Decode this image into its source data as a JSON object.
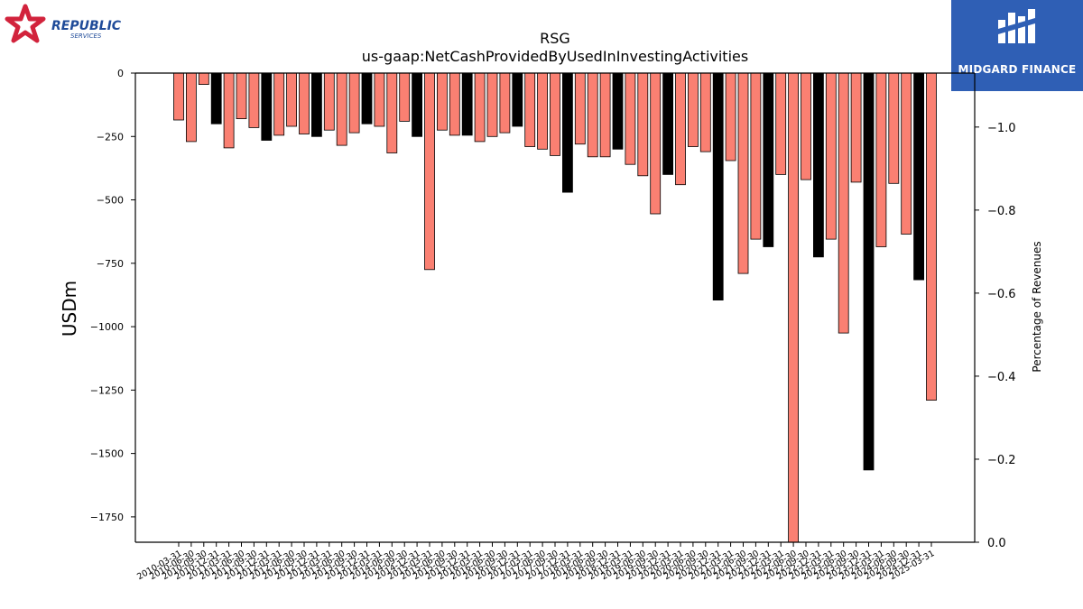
{
  "header": {
    "title": "RSG",
    "subtitle": "us-gaap:NetCashProvidedByUsedInInvestingActivities"
  },
  "logos": {
    "left_brand": "REPUBLIC",
    "left_sub": "SERVICES",
    "right_brand": "MIDGARD FINANCE"
  },
  "colors": {
    "bar_default": "#fa8072",
    "bar_highlight": "#000000",
    "brand_blue": "#2f5fb5",
    "republic_red": "#d2233c",
    "republic_blue": "#1f4b99"
  },
  "chart_data": {
    "type": "bar",
    "ylabel": "USDm",
    "y2label": "Percentage of Revenues",
    "ylim": [
      -1850,
      0
    ],
    "y2lim": [
      0.0,
      1.13
    ],
    "y_ticks": [
      "0",
      "−250",
      "−500",
      "−750",
      "−1000",
      "−1250",
      "−1500",
      "−1750"
    ],
    "y2_ticks": [
      "−1.0",
      "−0.8",
      "−0.6",
      "−0.4",
      "−0.2",
      "0.0"
    ],
    "x_tick_labels": [
      "2010-03-31",
      "2010-06-30",
      "2010-09-30",
      "2010-12-31",
      "2011-03-31",
      "2011-06-30",
      "2011-09-30",
      "2011-12-31",
      "2012-03-31",
      "2012-06-30",
      "2012-09-30",
      "2012-12-31",
      "2013-03-31",
      "2013-06-30",
      "2013-09-30",
      "2013-12-31",
      "2014-03-31",
      "2014-06-30",
      "2014-09-30",
      "2014-12-31",
      "2015-03-31",
      "2015-06-30",
      "2015-09-30",
      "2015-12-31",
      "2016-03-31",
      "2016-06-30",
      "2016-09-30",
      "2016-12-31",
      "2017-03-31",
      "2017-06-30",
      "2017-09-30",
      "2017-12-31",
      "2018-03-31",
      "2018-06-30",
      "2018-09-30",
      "2018-12-31",
      "2019-03-31",
      "2019-06-30",
      "2019-09-30",
      "2019-12-31",
      "2020-03-31",
      "2020-06-30",
      "2020-09-30",
      "2020-12-31",
      "2021-03-31",
      "2021-06-30",
      "2021-09-30",
      "2021-12-31",
      "2022-03-31",
      "2022-06-30",
      "2022-09-30",
      "2022-12-31",
      "2023-03-31",
      "2023-06-30",
      "2023-09-30",
      "2023-12-31",
      "2024-03-31",
      "2024-06-30",
      "2024-09-30",
      "2024-12-31",
      "2025-03-31"
    ],
    "values": [
      -185,
      -270,
      -45,
      -200,
      -295,
      -180,
      -215,
      -265,
      -245,
      -210,
      -240,
      -250,
      -225,
      -285,
      -235,
      -200,
      -210,
      -315,
      -190,
      -250,
      -775,
      -225,
      -245,
      -245,
      -270,
      -250,
      -235,
      -210,
      -290,
      -300,
      -325,
      -470,
      -280,
      -330,
      -330,
      -300,
      -360,
      -405,
      -555,
      -400,
      -440,
      -290,
      -310,
      -895,
      -345,
      -790,
      -655,
      -685,
      -400,
      -1850,
      -420,
      -725,
      -655,
      -1025,
      -430,
      -1565,
      -685,
      -435,
      -635,
      -815,
      -1290
    ],
    "highlight": [
      false,
      false,
      false,
      true,
      false,
      false,
      false,
      true,
      false,
      false,
      false,
      true,
      false,
      false,
      false,
      true,
      false,
      false,
      false,
      true,
      false,
      false,
      false,
      true,
      false,
      false,
      false,
      true,
      false,
      false,
      false,
      true,
      false,
      false,
      false,
      true,
      false,
      false,
      false,
      true,
      false,
      false,
      false,
      true,
      false,
      false,
      false,
      true,
      false,
      false,
      false,
      true,
      false,
      false,
      false,
      true,
      false,
      false,
      false,
      true,
      false
    ]
  }
}
